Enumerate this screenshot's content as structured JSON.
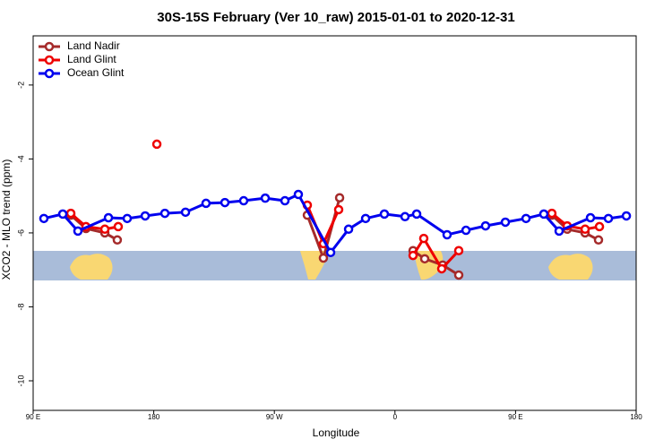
{
  "chart_data": {
    "type": "line",
    "title": "30S-15S February (Ver 10_raw)   2015-01-01 to 2020-12-31",
    "x_label": "Longitude",
    "y_label": "XCO2 - MLO trend (ppm)",
    "xlim": [
      90,
      540
    ],
    "xticks": [
      {
        "value": 90,
        "label": "90 E"
      },
      180,
      {
        "value": 270,
        "label": "90 W"
      },
      {
        "value": 360,
        "label": "0"
      },
      {
        "value": 450,
        "label": "90 E"
      },
      {
        "value": 540,
        "label": "180"
      }
    ],
    "ylim": [
      -10.8,
      -0.67
    ],
    "yticks": [
      -2,
      -4,
      -6,
      -8,
      -10
    ],
    "legend": "top-left",
    "series": [
      {
        "name": "Land Nadir",
        "color": "#a52a2a",
        "x": [
          118.1,
          129.4,
          143.5,
          152.8,
          null,
          294.6,
          306.6,
          318.7,
          null,
          373.5,
          382.2,
          395.6,
          407.6,
          null,
          477.1,
          488.5,
          501.9,
          511.9
        ],
        "values": [
          -5.52,
          -5.88,
          -6.0,
          -6.19,
          null,
          -5.52,
          -6.68,
          -5.05,
          null,
          -6.48,
          -6.7,
          -6.87,
          -7.14,
          null,
          -5.52,
          -5.9,
          -6.0,
          -6.19
        ]
      },
      {
        "name": "Land Glint",
        "color": "#ee0000",
        "x": [
          118.1,
          129.4,
          143.5,
          153.5,
          null,
          182.3,
          null,
          294.6,
          306.6,
          318.0,
          null,
          373.5,
          381.5,
          394.9,
          407.6,
          null,
          477.1,
          488.5,
          501.9,
          512.6
        ],
        "values": [
          -5.47,
          -5.83,
          -5.9,
          -5.83,
          null,
          -3.6,
          null,
          -5.25,
          -6.29,
          -5.37,
          null,
          -6.61,
          -6.15,
          -6.97,
          -6.48,
          null,
          -5.47,
          -5.81,
          -5.9,
          -5.83
        ]
      },
      {
        "name": "Ocean Glint",
        "color": "#0000ee",
        "x": [
          98.0,
          112.1,
          123.4,
          146.2,
          160.2,
          173.6,
          188.3,
          203.7,
          219.0,
          233.1,
          247.1,
          263.2,
          277.9,
          287.9,
          312.0,
          325.4,
          338.1,
          352.1,
          367.5,
          376.2,
          398.9,
          413.0,
          427.6,
          442.4,
          457.8,
          471.1,
          482.5,
          505.9,
          519.3,
          532.7
        ],
        "values": [
          -5.61,
          -5.49,
          -5.95,
          -5.59,
          -5.61,
          -5.54,
          -5.47,
          -5.44,
          -5.2,
          -5.18,
          -5.13,
          -5.06,
          -5.13,
          -4.96,
          -6.53,
          -5.9,
          -5.61,
          -5.49,
          -5.56,
          -5.49,
          -6.05,
          -5.93,
          -5.81,
          -5.71,
          -5.61,
          -5.49,
          -5.95,
          -5.59,
          -5.61,
          -5.54
        ]
      }
    ]
  }
}
